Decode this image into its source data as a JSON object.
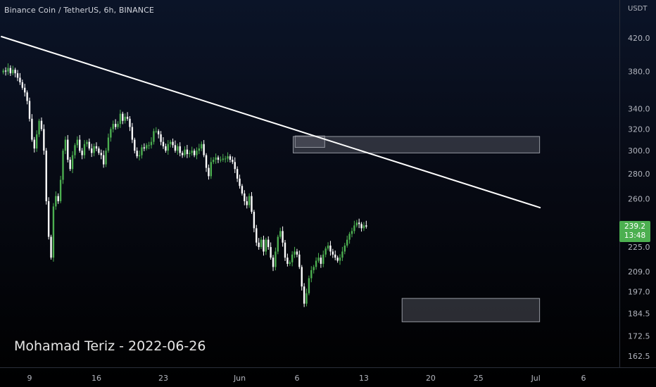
{
  "header": {
    "symbol_title": "Binance Coin / TetherUS, 6h, BINANCE"
  },
  "price_axis": {
    "currency": "USDT",
    "last_price_badge": {
      "price": "239.2",
      "countdown": "13:48",
      "color": "#4caf50"
    }
  },
  "watermark": "Mohamad Teriz - 2022-06-26",
  "colors": {
    "up": "#4caf50",
    "down": "#ffffff",
    "trendline": "#ffffff",
    "zone_fill": "#5d606b",
    "zone_border": "#9598a1",
    "axis_text": "#b2b5be",
    "background_top": "#0b1428",
    "background_bottom": "#000000"
  },
  "chart_data": {
    "type": "candlestick",
    "title": "Binance Coin / TetherUS, 6h, BINANCE",
    "y_scale": "log",
    "y_ticks": [
      420.0,
      380.0,
      340.0,
      320.0,
      300.0,
      280.0,
      260.0,
      239.2,
      225.0,
      209.0,
      197.0,
      184.5,
      172.5,
      162.5
    ],
    "y_tick_labels": [
      "420.0",
      "380.0",
      "340.0",
      "320.0",
      "300.0",
      "280.0",
      "260.0",
      "239.2",
      "225.0",
      "209.0",
      "197.0",
      "184.5",
      "172.5",
      "162.5"
    ],
    "x_ticks": [
      {
        "label": "9",
        "day": 9
      },
      {
        "label": "16",
        "day": 16
      },
      {
        "label": "23",
        "day": 23
      },
      {
        "label": "Jun",
        "day": 31
      },
      {
        "label": "6",
        "day": 37
      },
      {
        "label": "13",
        "day": 44
      },
      {
        "label": "20",
        "day": 51
      },
      {
        "label": "25",
        "day": 56
      },
      {
        "label": "Jul",
        "day": 62
      },
      {
        "label": "6",
        "day": 67
      }
    ],
    "x_unit": "days since May 0, 2022",
    "candle_interval_days": 0.25,
    "first_candle_day": 6.25,
    "closes": [
      381,
      380,
      384,
      378,
      382,
      378,
      373,
      368,
      362,
      357,
      348,
      330,
      310,
      302,
      315,
      328,
      320,
      300,
      258,
      232,
      218,
      254,
      262,
      258,
      275,
      300,
      310,
      292,
      284,
      296,
      305,
      310,
      300,
      296,
      306,
      308,
      302,
      298,
      304,
      302,
      298,
      296,
      288,
      300,
      312,
      320,
      325,
      322,
      325,
      335,
      328,
      332,
      330,
      322,
      310,
      300,
      295,
      296,
      303,
      302,
      305,
      305,
      308,
      318,
      318,
      315,
      308,
      304,
      300,
      306,
      308,
      305,
      300,
      304,
      298,
      296,
      301,
      297,
      298,
      300,
      296,
      300,
      302,
      306,
      296,
      285,
      278,
      290,
      292,
      294,
      292,
      292,
      293,
      293,
      295,
      292,
      290,
      284,
      276,
      270,
      264,
      258,
      255,
      262,
      250,
      238,
      228,
      225,
      230,
      222,
      230,
      225,
      218,
      212,
      222,
      232,
      236,
      228,
      218,
      214,
      215,
      220,
      222,
      220,
      212,
      200,
      190,
      196,
      205,
      210,
      212,
      216,
      218,
      214,
      220,
      224,
      226,
      222,
      220,
      218,
      216,
      218,
      222,
      226,
      230,
      234,
      236,
      240,
      242,
      241,
      238,
      240,
      239.2
    ]
  },
  "annotations": {
    "trendline": {
      "from": {
        "day": 6.0,
        "price": 422.0
      },
      "to": {
        "day": 62.5,
        "price": 253.0
      }
    },
    "zones": [
      {
        "name": "resistance",
        "day_from": 36.6,
        "day_to": 62.4,
        "price_low": 298.0,
        "price_high": 313.0
      },
      {
        "name": "support",
        "day_from": 48.0,
        "day_to": 62.4,
        "price_low": 180.0,
        "price_high": 193.0
      },
      {
        "name": "test",
        "day_from": 36.8,
        "day_to": 39.9,
        "price_low": 303.0,
        "price_high": 313.5
      }
    ]
  }
}
